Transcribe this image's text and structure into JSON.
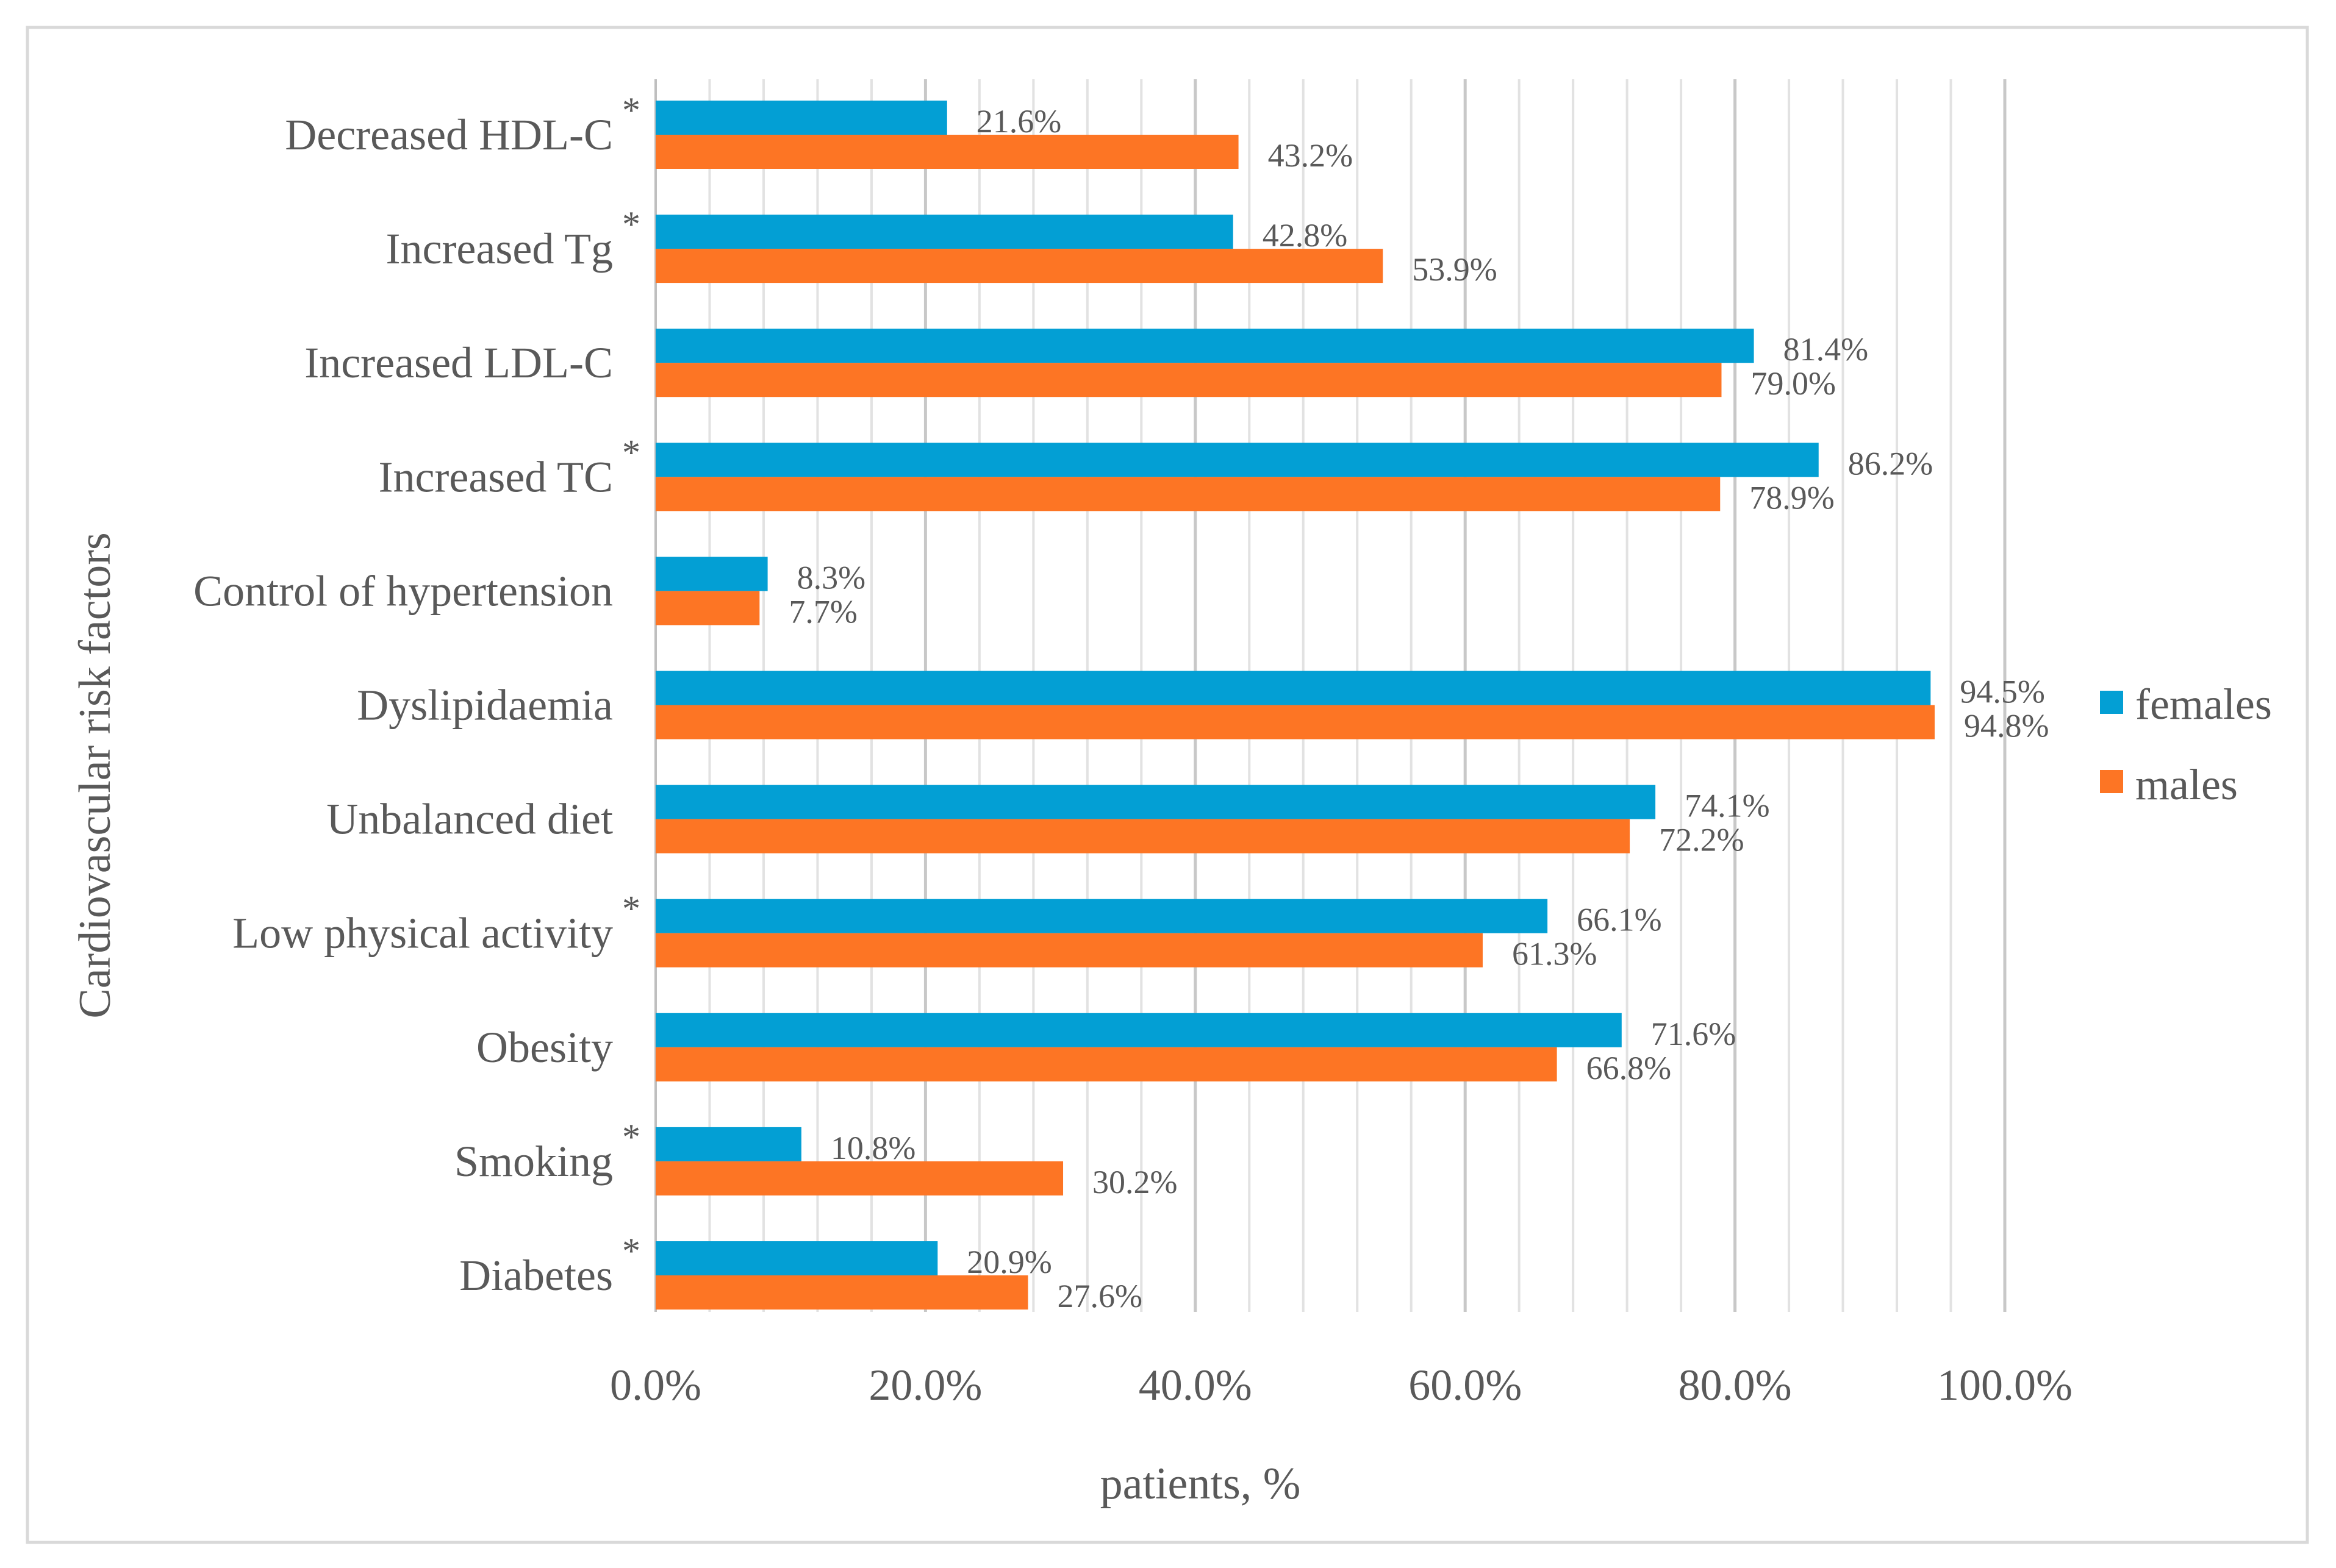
{
  "chart_data": {
    "type": "bar",
    "orientation": "horizontal",
    "title": "",
    "xlabel": "patients, %",
    "ylabel": "Cardiovascular risk factors",
    "xlim": [
      0,
      100
    ],
    "x_ticks": [
      "0.0%",
      "20.0%",
      "40.0%",
      "60.0%",
      "80.0%",
      "100.0%"
    ],
    "grid": true,
    "legend_position": "right",
    "categories": [
      "Decreased HDL-C",
      "Increased Tg",
      "Increased LDL-C",
      "Increased TC",
      "Control of hypertension",
      "Dyslipidaemia",
      "Unbalanced diet",
      "Low physical activity",
      "Obesity",
      "Smoking",
      "Diabetes"
    ],
    "significance_marker": "*",
    "significant": [
      true,
      true,
      false,
      true,
      false,
      false,
      false,
      true,
      false,
      true,
      true
    ],
    "series": [
      {
        "name": "females",
        "color": "#039FD4",
        "values": [
          21.6,
          42.8,
          81.4,
          86.2,
          8.3,
          94.5,
          74.1,
          66.1,
          71.6,
          10.8,
          20.9
        ],
        "labels": [
          "21.6%",
          "42.8%",
          "81.4%",
          "86.2%",
          "8.3%",
          "94.5%",
          "74.1%",
          "66.1%",
          "71.6%",
          "10.8%",
          "20.9%"
        ]
      },
      {
        "name": "males",
        "color": "#FD7524",
        "values": [
          43.2,
          53.9,
          79.0,
          78.9,
          7.7,
          94.8,
          72.2,
          61.3,
          66.8,
          30.2,
          27.6
        ],
        "labels": [
          "43.2%",
          "53.9%",
          "79.0%",
          "78.9%",
          "7.7%",
          "94.8%",
          "72.2%",
          "61.3%",
          "66.8%",
          "30.2%",
          "27.6%"
        ]
      }
    ]
  }
}
